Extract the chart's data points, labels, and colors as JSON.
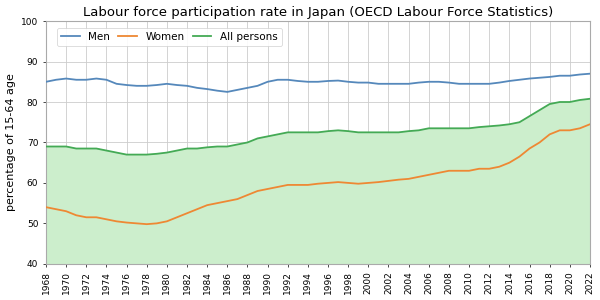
{
  "title": "Labour force participation rate in Japan (OECD Labour Force Statistics)",
  "ylabel": "percentage of 15-64 age",
  "ylim": [
    40,
    100
  ],
  "yticks": [
    40,
    50,
    60,
    70,
    80,
    90,
    100
  ],
  "years": [
    1968,
    1969,
    1970,
    1971,
    1972,
    1973,
    1974,
    1975,
    1976,
    1977,
    1978,
    1979,
    1980,
    1981,
    1982,
    1983,
    1984,
    1985,
    1986,
    1987,
    1988,
    1989,
    1990,
    1991,
    1992,
    1993,
    1994,
    1995,
    1996,
    1997,
    1998,
    1999,
    2000,
    2001,
    2002,
    2003,
    2004,
    2005,
    2006,
    2007,
    2008,
    2009,
    2010,
    2011,
    2012,
    2013,
    2014,
    2015,
    2016,
    2017,
    2018,
    2019,
    2020,
    2021,
    2022
  ],
  "men": [
    85.0,
    85.5,
    85.8,
    85.5,
    85.5,
    85.8,
    85.5,
    84.5,
    84.2,
    84.0,
    84.0,
    84.2,
    84.5,
    84.2,
    84.0,
    83.5,
    83.2,
    82.8,
    82.5,
    83.0,
    83.5,
    84.0,
    85.0,
    85.5,
    85.5,
    85.2,
    85.0,
    85.0,
    85.2,
    85.3,
    85.0,
    84.8,
    84.8,
    84.5,
    84.5,
    84.5,
    84.5,
    84.8,
    85.0,
    85.0,
    84.8,
    84.5,
    84.5,
    84.5,
    84.5,
    84.8,
    85.2,
    85.5,
    85.8,
    86.0,
    86.2,
    86.5,
    86.5,
    86.8,
    87.0
  ],
  "women": [
    54.0,
    53.5,
    53.0,
    52.0,
    51.5,
    51.5,
    51.0,
    50.5,
    50.2,
    50.0,
    49.8,
    50.0,
    50.5,
    51.5,
    52.5,
    53.5,
    54.5,
    55.0,
    55.5,
    56.0,
    57.0,
    58.0,
    58.5,
    59.0,
    59.5,
    59.5,
    59.5,
    59.8,
    60.0,
    60.2,
    60.0,
    59.8,
    60.0,
    60.2,
    60.5,
    60.8,
    61.0,
    61.5,
    62.0,
    62.5,
    63.0,
    63.0,
    63.0,
    63.5,
    63.5,
    64.0,
    65.0,
    66.5,
    68.5,
    70.0,
    72.0,
    73.0,
    73.0,
    73.5,
    74.5
  ],
  "all": [
    69.0,
    69.0,
    69.0,
    68.5,
    68.5,
    68.5,
    68.0,
    67.5,
    67.0,
    67.0,
    67.0,
    67.2,
    67.5,
    68.0,
    68.5,
    68.5,
    68.8,
    69.0,
    69.0,
    69.5,
    70.0,
    71.0,
    71.5,
    72.0,
    72.5,
    72.5,
    72.5,
    72.5,
    72.8,
    73.0,
    72.8,
    72.5,
    72.5,
    72.5,
    72.5,
    72.5,
    72.8,
    73.0,
    73.5,
    73.5,
    73.5,
    73.5,
    73.5,
    73.8,
    74.0,
    74.2,
    74.5,
    75.0,
    76.5,
    78.0,
    79.5,
    80.0,
    80.0,
    80.5,
    80.8
  ],
  "men_color": "#5588bb",
  "women_color": "#ee8833",
  "all_color": "#44aa55",
  "all_fill_color": "#cceecc",
  "plot_bg_color": "#ffffff",
  "fig_bg_color": "#ffffff",
  "grid_color": "#cccccc",
  "legend_labels": [
    "Men",
    "Women",
    "All persons"
  ],
  "title_fontsize": 9.5,
  "label_fontsize": 8,
  "tick_fontsize": 6.5,
  "legend_fontsize": 7.5
}
